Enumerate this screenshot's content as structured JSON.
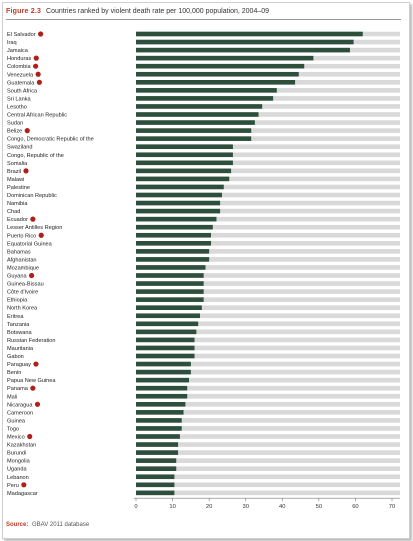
{
  "figure": {
    "label": "Figure 2.3",
    "title": "Countries ranked by violent death rate per 100,000 population, 2004–09",
    "source_label": "Source:",
    "source_text": "GBAV 2011 database"
  },
  "colors": {
    "bar": "#2d4f3c",
    "bar_track": "#d9d9d9",
    "marker": "#b0201a",
    "accent": "#c0392b"
  },
  "chart_data": {
    "type": "bar",
    "orientation": "horizontal",
    "title": "Countries ranked by violent death rate per 100,000 population, 2004–09",
    "xlabel": "",
    "ylabel": "",
    "xlim": [
      0,
      70
    ],
    "xticks": [
      0,
      10,
      20,
      30,
      40,
      50,
      60,
      70
    ],
    "grid": false,
    "categories": [
      "El Salvador",
      "Iraq",
      "Jamaica",
      "Honduras",
      "Colombia",
      "Venezuela",
      "Guatemala",
      "South Africa",
      "Sri Lanka",
      "Lesotho",
      "Central African Republic",
      "Sudan",
      "Belize",
      "Congo, Democratic Republic of the",
      "Swaziland",
      "Congo, Republic of the",
      "Somalia",
      "Brazil",
      "Malawi",
      "Palestine",
      "Dominican Republic",
      "Namibia",
      "Chad",
      "Ecuador",
      "Lesser Antilles Region",
      "Puerto Rico",
      "Equatorial Guinea",
      "Bahamas",
      "Afghanistan",
      "Mozambique",
      "Guyana",
      "Guinea-Bissau",
      "Côte d'Ivoire",
      "Ethiopia",
      "North Korea",
      "Eritrea",
      "Tanzania",
      "Botswana",
      "Russian Federation",
      "Mauritania",
      "Gabon",
      "Paraguay",
      "Benin",
      "Papua New Guinea",
      "Panama",
      "Mali",
      "Nicaragua",
      "Cameroon",
      "Guinea",
      "Togo",
      "Mexico",
      "Kazakhstan",
      "Burundi",
      "Mongolia",
      "Uganda",
      "Lebanon",
      "Peru",
      "Madagascar"
    ],
    "values": [
      62,
      59.5,
      58.5,
      48.5,
      46,
      44.5,
      43.5,
      38.5,
      37.5,
      34.5,
      33.5,
      32.5,
      31.5,
      31.5,
      26.5,
      26.5,
      26.5,
      26,
      25.5,
      24,
      23.5,
      23,
      23,
      22,
      21,
      20.5,
      20.5,
      20,
      20,
      19,
      18.5,
      18.5,
      18.5,
      18.5,
      18,
      17.5,
      17,
      16.5,
      16,
      16,
      16,
      15,
      15,
      14.5,
      14,
      14,
      13.5,
      13,
      12.5,
      12.5,
      12,
      11.5,
      11.5,
      11,
      11,
      10.5,
      10.5,
      10.5
    ],
    "highlighted": [
      "El Salvador",
      "Honduras",
      "Colombia",
      "Venezuela",
      "Guatemala",
      "Belize",
      "Brazil",
      "Ecuador",
      "Puerto Rico",
      "Guyana",
      "Paraguay",
      "Panama",
      "Nicaragua",
      "Mexico",
      "Peru"
    ]
  }
}
